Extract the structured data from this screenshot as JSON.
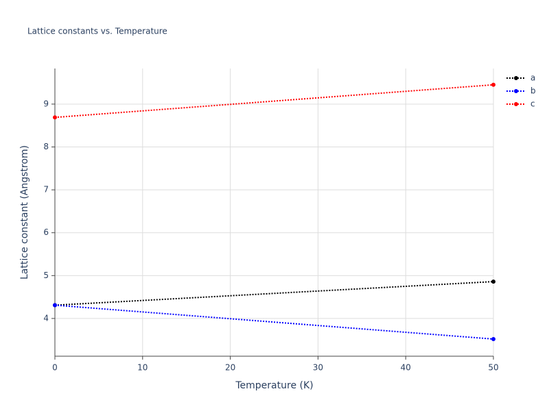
{
  "chart_data": {
    "type": "line",
    "title": "Lattice constants vs. Temperature",
    "x_label": "Temperature (K)",
    "y_label": "Lattice constant (Angstrom)",
    "x": [
      0,
      50
    ],
    "series": [
      {
        "name": "a",
        "color": "#000000",
        "values": [
          4.31,
          4.86
        ]
      },
      {
        "name": "b",
        "color": "#0000ff",
        "values": [
          4.31,
          3.52
        ]
      },
      {
        "name": "c",
        "color": "#ff0000",
        "values": [
          8.69,
          9.45
        ]
      }
    ],
    "xlim": [
      0,
      50
    ],
    "xticks": [
      0,
      10,
      20,
      30,
      40,
      50
    ],
    "ylim": [
      3.12,
      9.83
    ],
    "yticks": [
      4,
      5,
      6,
      7,
      8,
      9
    ],
    "grid": true,
    "legend": "right",
    "line_style": "dotted"
  }
}
